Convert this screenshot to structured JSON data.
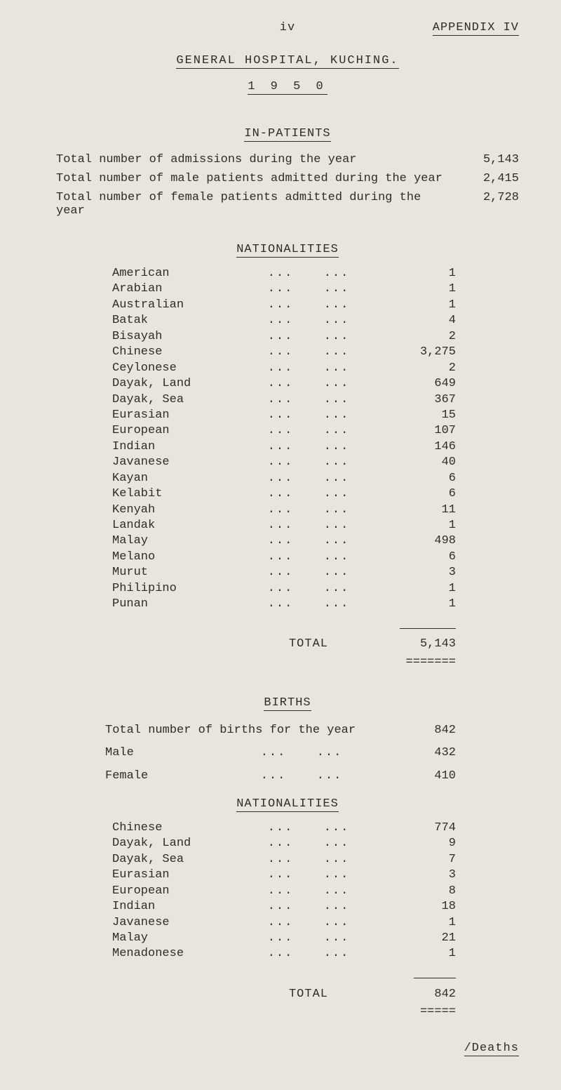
{
  "page_mark": "iv",
  "appendix_label": "APPENDIX  IV",
  "title": "GENERAL HOSPITAL, KUCHING.",
  "year": "1 9 5 0",
  "inpatients_heading": "IN-PATIENTS",
  "admissions": [
    {
      "label": "Total number of admissions during the year",
      "value": "5,143"
    },
    {
      "label": "Total number of male patients admitted during the year",
      "value": "2,415"
    },
    {
      "label": "Total number of female patients admitted during the year",
      "value": "2,728"
    }
  ],
  "nationalities_heading": "NATIONALITIES",
  "nationalities_total_label": "TOTAL",
  "nationalities_total_value": "5,143",
  "nationalities": [
    {
      "name": "American",
      "value": "1"
    },
    {
      "name": "Arabian",
      "value": "1"
    },
    {
      "name": "Australian",
      "value": "1"
    },
    {
      "name": "Batak",
      "value": "4"
    },
    {
      "name": "Bisayah",
      "value": "2"
    },
    {
      "name": "Chinese",
      "value": "3,275"
    },
    {
      "name": "Ceylonese",
      "value": "2"
    },
    {
      "name": "Dayak, Land",
      "value": "649"
    },
    {
      "name": "Dayak, Sea",
      "value": "367"
    },
    {
      "name": "Eurasian",
      "value": "15"
    },
    {
      "name": "European",
      "value": "107"
    },
    {
      "name": "Indian",
      "value": "146"
    },
    {
      "name": "Javanese",
      "value": "40"
    },
    {
      "name": "Kayan",
      "value": "6"
    },
    {
      "name": "Kelabit",
      "value": "6"
    },
    {
      "name": "Kenyah",
      "value": "11"
    },
    {
      "name": "Landak",
      "value": "1"
    },
    {
      "name": "Malay",
      "value": "498"
    },
    {
      "name": "Melano",
      "value": "6"
    },
    {
      "name": "Murut",
      "value": "3"
    },
    {
      "name": "Philipino",
      "value": "1"
    },
    {
      "name": "Punan",
      "value": "1"
    }
  ],
  "births_heading": "BIRTHS",
  "births": [
    {
      "name": "Total number of births for the year",
      "value": "842"
    },
    {
      "name": "Male",
      "value": "432"
    },
    {
      "name": "Female",
      "value": "410"
    }
  ],
  "births_nat_heading": "NATIONALITIES",
  "births_nationalities": [
    {
      "name": "Chinese",
      "value": "774"
    },
    {
      "name": "Dayak, Land",
      "value": "9"
    },
    {
      "name": "Dayak, Sea",
      "value": "7"
    },
    {
      "name": "Eurasian",
      "value": "3"
    },
    {
      "name": "European",
      "value": "8"
    },
    {
      "name": "Indian",
      "value": "18"
    },
    {
      "name": "Javanese",
      "value": "1"
    },
    {
      "name": "Malay",
      "value": "21"
    },
    {
      "name": "Menadonese",
      "value": "1"
    }
  ],
  "births_total_label": "TOTAL",
  "births_total_value": "842",
  "footer_link": "/Deaths"
}
